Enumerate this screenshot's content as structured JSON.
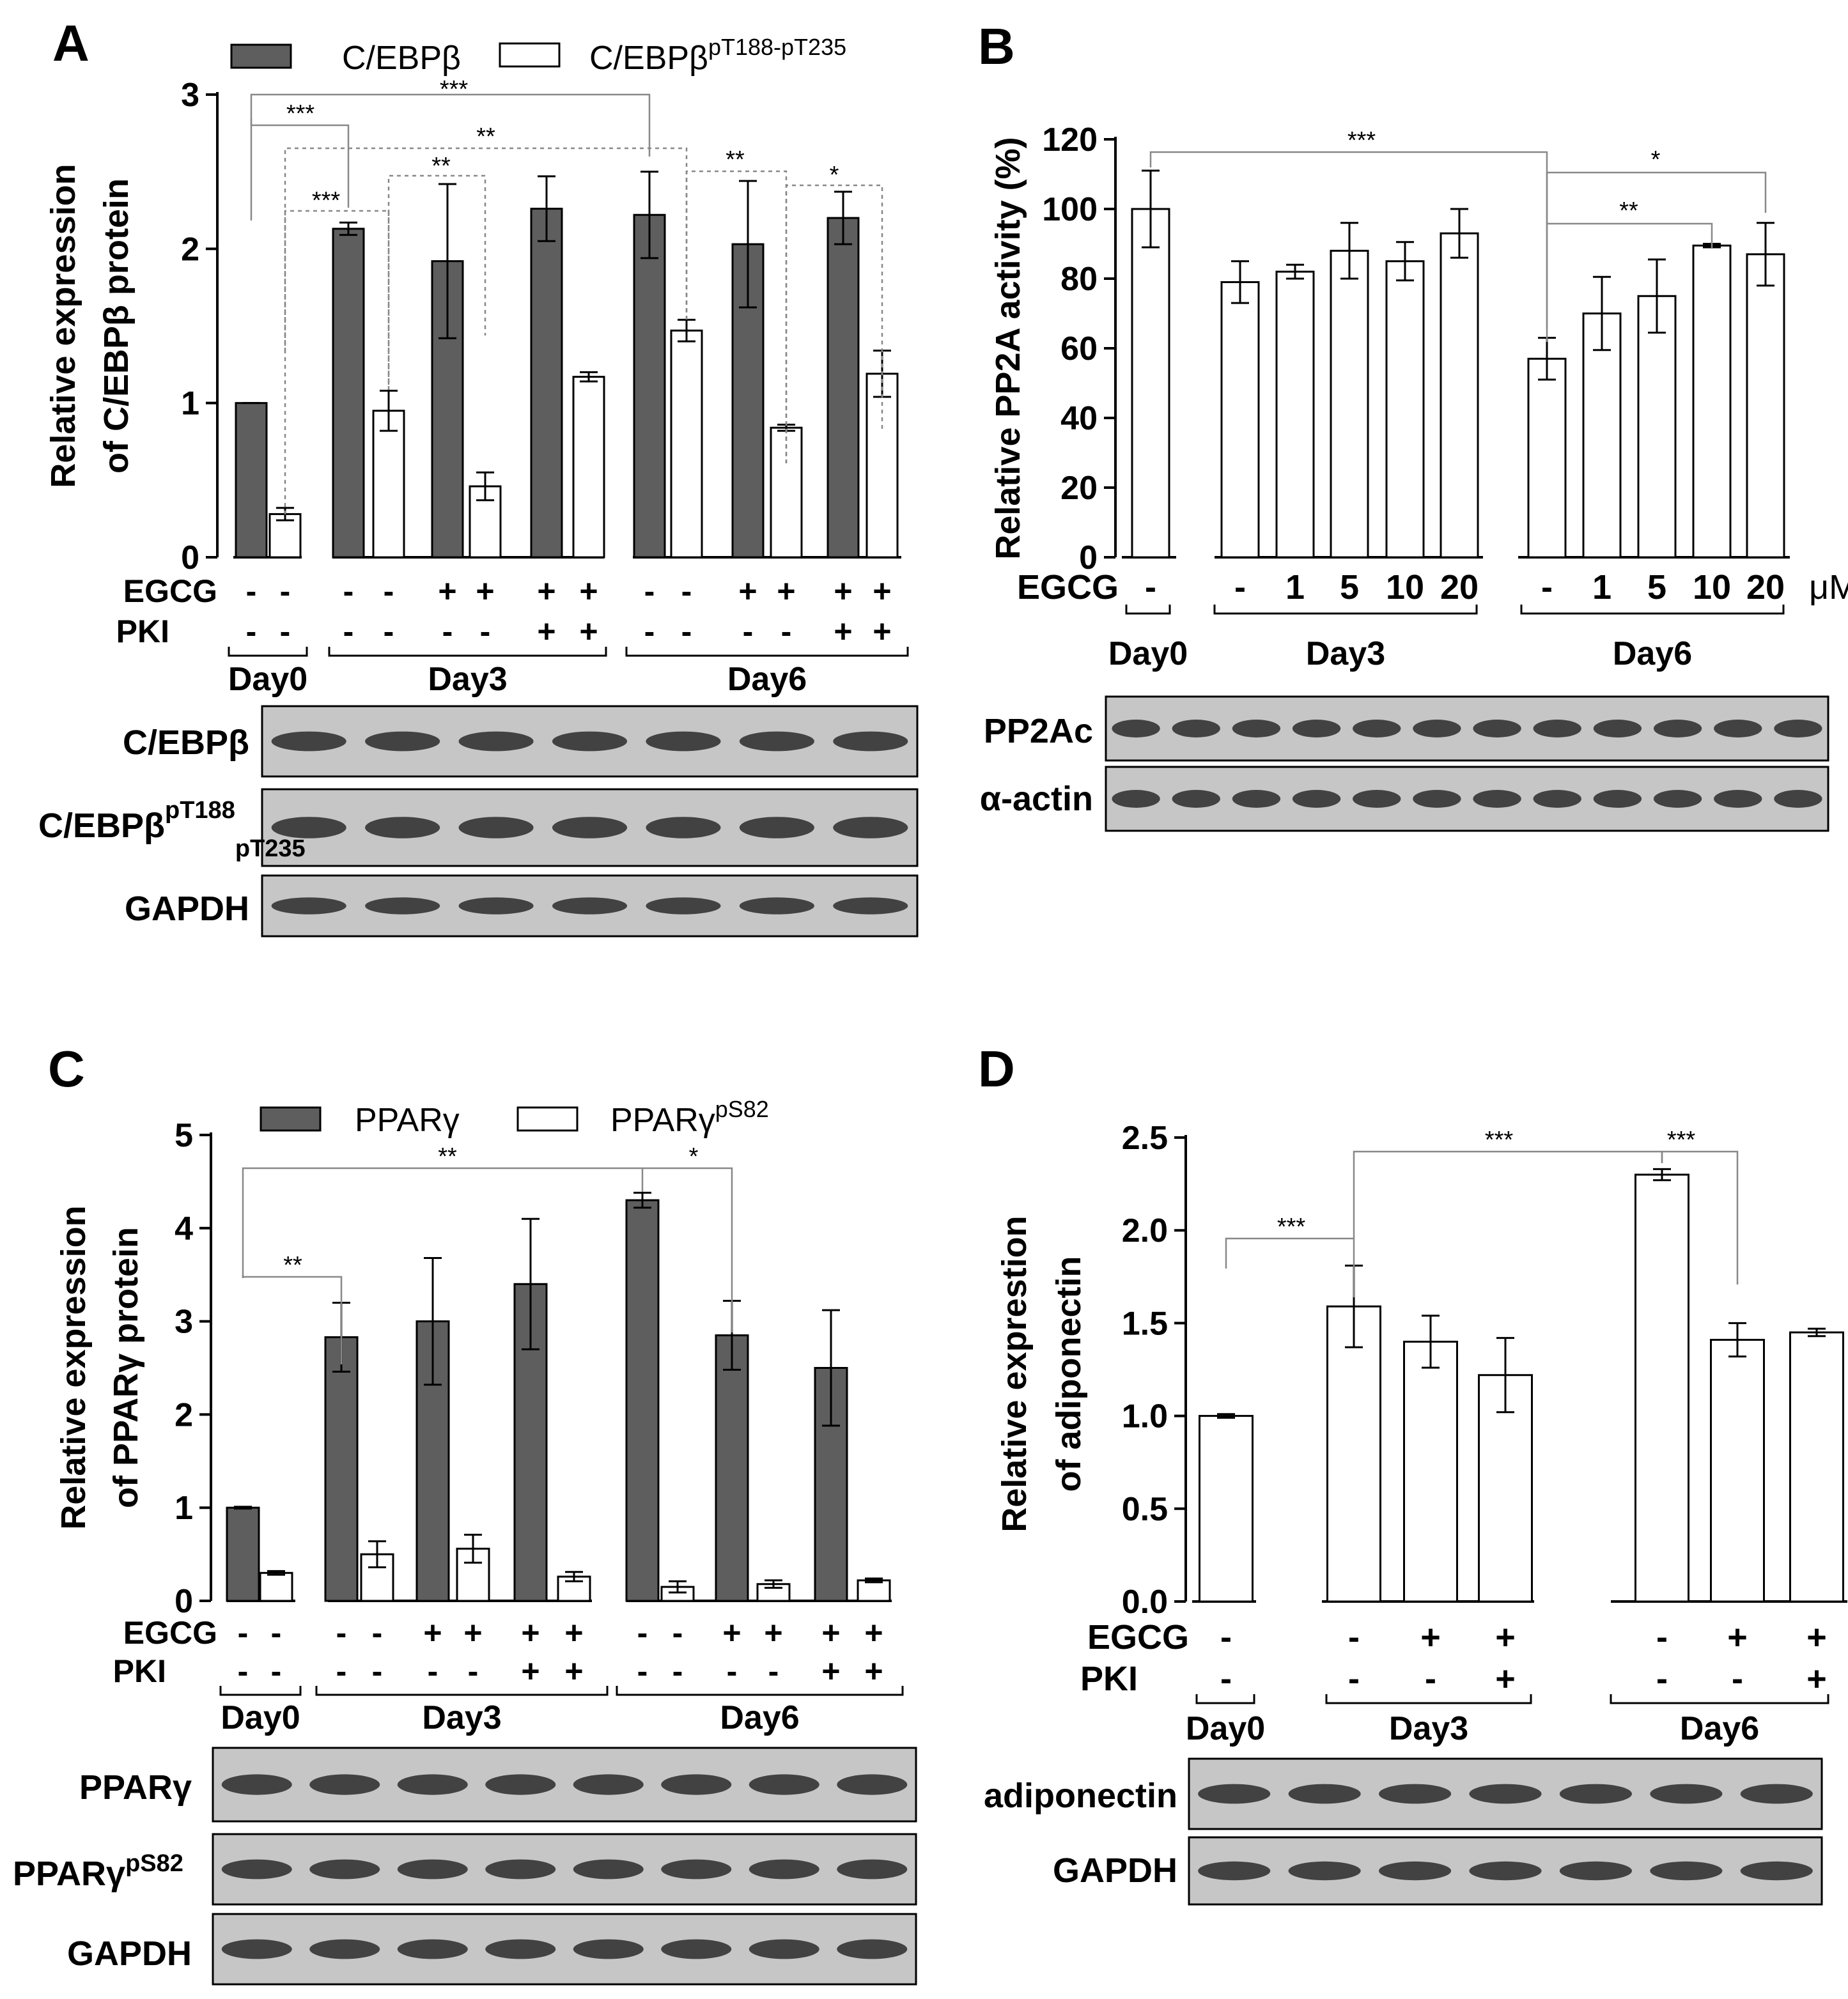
{
  "colors": {
    "filled": "#5e5e5e",
    "open": "#ffffff",
    "stroke": "#000000",
    "blot_bg": "#c6c6c6",
    "band": "#2a2a2a"
  },
  "chart_data": [
    {
      "panel": "A",
      "type": "bar",
      "title": "",
      "ylabel": [
        "Relative expression",
        "of C/EBPβ protein"
      ],
      "ylim": [
        0,
        3
      ],
      "yticks": [
        "0",
        "1",
        "2",
        "3"
      ],
      "legend": {
        "filled": "C/EBPβ",
        "open_base": "C/EBPβ",
        "open_sup": "pT188-pT235"
      },
      "series": [
        {
          "name": "C/EBPβ",
          "values": [
            1.0,
            2.13,
            1.92,
            2.26,
            2.22,
            2.03,
            2.2
          ],
          "errors": [
            0,
            0.04,
            0.5,
            0.21,
            0.28,
            0.41,
            0.17
          ]
        },
        {
          "name": "C/EBPβ pT188-pT235",
          "values": [
            0.28,
            0.95,
            0.46,
            1.17,
            1.47,
            0.84,
            1.19
          ],
          "errors": [
            0.04,
            0.13,
            0.09,
            0.03,
            0.07,
            0.02,
            0.15
          ]
        }
      ],
      "conditions": {
        "rows": [
          "EGCG",
          "PKI"
        ],
        "egcg": [
          "-",
          "-",
          "-",
          "-",
          "+",
          "+",
          "+",
          "+",
          "-",
          "-",
          "+",
          "+",
          "+",
          "+"
        ],
        "pki": [
          "-",
          "-",
          "-",
          "-",
          "-",
          "-",
          "+",
          "+",
          "-",
          "-",
          "-",
          "-",
          "+",
          "+"
        ]
      },
      "groups": [
        "Day0",
        "Day3",
        "Day6"
      ],
      "significance": [
        "***",
        "***",
        "**",
        "***",
        "**",
        "**",
        "*"
      ],
      "blots": [
        {
          "label": "C/EBPβ",
          "sup": "",
          "sub": ""
        },
        {
          "label": "C/EBPβ",
          "sup": "pT188",
          "sub": "pT235"
        },
        {
          "label": "GAPDH",
          "sup": "",
          "sub": ""
        }
      ]
    },
    {
      "panel": "B",
      "type": "bar",
      "title": "",
      "ylabel": "Relative PP2A activity (%)",
      "ylim": [
        0,
        120
      ],
      "yticks": [
        "0",
        "20",
        "40",
        "60",
        "80",
        "100",
        "120"
      ],
      "series": [
        {
          "name": "PP2A activity",
          "values": [
            100,
            79,
            82,
            88,
            85,
            93,
            57,
            70,
            75,
            89.5,
            87
          ],
          "errors": [
            11,
            6,
            2,
            8,
            5.5,
            7,
            6,
            10.5,
            10.5,
            0.5,
            9
          ]
        }
      ],
      "conditions": {
        "rows": [
          "EGCG"
        ],
        "egcg": [
          "-",
          "-",
          "1",
          "5",
          "10",
          "20",
          "-",
          "1",
          "5",
          "10",
          "20"
        ],
        "unit": "μM"
      },
      "groups": [
        "Day0",
        "Day3",
        "Day6"
      ],
      "significance": [
        "***",
        "*",
        "**"
      ],
      "blots": [
        {
          "label": "PP2Ac"
        },
        {
          "label": "α-actin"
        }
      ]
    },
    {
      "panel": "C",
      "type": "bar",
      "title": "",
      "ylabel": [
        "Relative expression",
        "of PPARγ protein"
      ],
      "ylim": [
        0,
        5
      ],
      "yticks": [
        "0",
        "1",
        "2",
        "3",
        "4",
        "5"
      ],
      "legend": {
        "filled": "PPARγ",
        "open_base": "PPARγ",
        "open_sup": "pS82"
      },
      "series": [
        {
          "name": "PPARγ",
          "values": [
            1.0,
            2.83,
            3.0,
            3.4,
            4.3,
            2.85,
            2.5
          ],
          "errors": [
            0.01,
            0.37,
            0.68,
            0.7,
            0.08,
            0.37,
            0.62
          ]
        },
        {
          "name": "PPARγ pS82",
          "values": [
            0.3,
            0.5,
            0.56,
            0.26,
            0.15,
            0.18,
            0.22
          ],
          "errors": [
            0.02,
            0.14,
            0.15,
            0.05,
            0.06,
            0.04,
            0.02
          ]
        }
      ],
      "conditions": {
        "rows": [
          "EGCG",
          "PKI"
        ],
        "egcg": [
          "-",
          "-",
          "-",
          "-",
          "+",
          "+",
          "+",
          "+",
          "-",
          "-",
          "+",
          "+",
          "+",
          "+"
        ],
        "pki": [
          "-",
          "-",
          "-",
          "-",
          "-",
          "-",
          "+",
          "+",
          "-",
          "-",
          "-",
          "-",
          "+",
          "+"
        ]
      },
      "groups": [
        "Day0",
        "Day3",
        "Day6"
      ],
      "significance": [
        "**",
        "**",
        "*"
      ],
      "blots": [
        {
          "label": "PPARγ",
          "sup": ""
        },
        {
          "label": "PPARγ",
          "sup": "pS82"
        },
        {
          "label": "GAPDH",
          "sup": ""
        }
      ]
    },
    {
      "panel": "D",
      "type": "bar",
      "title": "",
      "ylabel": [
        "Relative exprestion",
        "of adiponectin"
      ],
      "ylim": [
        0,
        2.5
      ],
      "yticks": [
        "0.0",
        "0.5",
        "1.0",
        "1.5",
        "2.0",
        "2.5"
      ],
      "series": [
        {
          "name": "adiponectin",
          "values": [
            1.0,
            1.59,
            1.4,
            1.22,
            2.3,
            1.41,
            1.45
          ],
          "errors": [
            0.01,
            0.22,
            0.14,
            0.2,
            0.03,
            0.09,
            0.02
          ]
        }
      ],
      "conditions": {
        "rows": [
          "EGCG",
          "PKI"
        ],
        "egcg": [
          "-",
          "-",
          "+",
          "+",
          "-",
          "+",
          "+"
        ],
        "pki": [
          "-",
          "-",
          "-",
          "+",
          "-",
          "-",
          "+"
        ]
      },
      "groups": [
        "Day0",
        "Day3",
        "Day6"
      ],
      "significance": [
        "***",
        "***",
        "***"
      ],
      "blots": [
        {
          "label": "adiponectin"
        },
        {
          "label": "GAPDH"
        }
      ]
    }
  ]
}
